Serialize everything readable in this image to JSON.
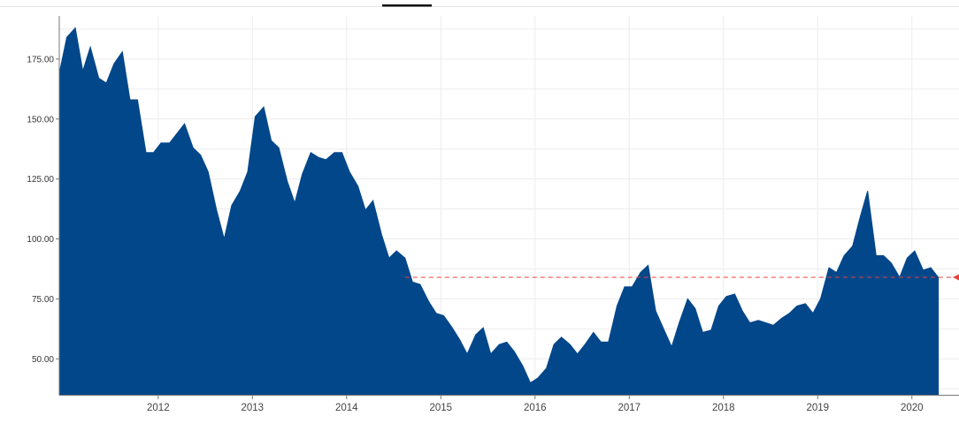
{
  "colors": {
    "area": "#02478a",
    "reference_line": "#e8413c",
    "grid": "#ececec",
    "axis": "#777777",
    "tab_indicator": "#111111"
  },
  "chart_data": {
    "type": "area",
    "title": "",
    "xlabel": "",
    "ylabel": "",
    "xlim": [
      2010.95,
      2020.5
    ],
    "ylim": [
      35,
      193
    ],
    "grid": true,
    "x_ticks": [
      {
        "x": 2012,
        "label": "2012"
      },
      {
        "x": 2013,
        "label": "2013"
      },
      {
        "x": 2014,
        "label": "2014"
      },
      {
        "x": 2015,
        "label": "2015"
      },
      {
        "x": 2016,
        "label": "2016"
      },
      {
        "x": 2017,
        "label": "2017"
      },
      {
        "x": 2018,
        "label": "2018"
      },
      {
        "x": 2019,
        "label": "2019"
      },
      {
        "x": 2020,
        "label": "2020"
      }
    ],
    "y_ticks": [
      {
        "y": 50,
        "label": "50.00"
      },
      {
        "y": 75,
        "label": "75.00"
      },
      {
        "y": 100,
        "label": "100.00"
      },
      {
        "y": 125,
        "label": "125.00"
      },
      {
        "y": 150,
        "label": "150.00"
      },
      {
        "y": 175,
        "label": "175.00"
      }
    ],
    "reference_value": 84,
    "reference_start_x": 2014.62,
    "series": [
      {
        "x": [
          2010.95,
          2011.03,
          2011.12,
          2011.2,
          2011.28,
          2011.37,
          2011.45,
          2011.53,
          2011.62,
          2011.7,
          2011.78,
          2011.87,
          2011.95,
          2012.03,
          2012.12,
          2012.2,
          2012.28,
          2012.37,
          2012.45,
          2012.53,
          2012.62,
          2012.7,
          2012.78,
          2012.87,
          2012.95,
          2013.03,
          2013.12,
          2013.2,
          2013.28,
          2013.37,
          2013.45,
          2013.53,
          2013.62,
          2013.7,
          2013.78,
          2013.87,
          2013.95,
          2014.03,
          2014.12,
          2014.2,
          2014.28,
          2014.37,
          2014.45,
          2014.53,
          2014.62,
          2014.7,
          2014.78,
          2014.87,
          2014.95,
          2015.03,
          2015.12,
          2015.2,
          2015.28,
          2015.37,
          2015.45,
          2015.53,
          2015.62,
          2015.7,
          2015.78,
          2015.87,
          2015.95,
          2016.03,
          2016.12,
          2016.2,
          2016.28,
          2016.37,
          2016.45,
          2016.53,
          2016.62,
          2016.7,
          2016.78,
          2016.87,
          2016.95,
          2017.03,
          2017.12,
          2017.2,
          2017.28,
          2017.37,
          2017.45,
          2017.53,
          2017.62,
          2017.7,
          2017.78,
          2017.87,
          2017.95,
          2018.03,
          2018.12,
          2018.2,
          2018.28,
          2018.37,
          2018.45,
          2018.53,
          2018.62,
          2018.7,
          2018.78,
          2018.87,
          2018.95,
          2019.03,
          2019.12,
          2019.2,
          2019.28,
          2019.37,
          2019.45,
          2019.53,
          2019.62,
          2019.7,
          2019.78,
          2019.87,
          2019.95,
          2020.03,
          2020.12,
          2020.2,
          2020.28
        ],
        "values": [
          169,
          184,
          188,
          170,
          180,
          167,
          165,
          173,
          178,
          158,
          158,
          136,
          136,
          140,
          140,
          144,
          148,
          138,
          135,
          128,
          112,
          100,
          114,
          120,
          128,
          151,
          155,
          141,
          138,
          124,
          115,
          127,
          136,
          134,
          133,
          136,
          136,
          128,
          122,
          112,
          116,
          102,
          92,
          95,
          92,
          82,
          81,
          74,
          69,
          68,
          63,
          58,
          52,
          60,
          63,
          52,
          56,
          57,
          53,
          47,
          40,
          42,
          46,
          56,
          59,
          56,
          52,
          56,
          61,
          57,
          57,
          72,
          80,
          80,
          86,
          89,
          70,
          62,
          55,
          65,
          75,
          71,
          61,
          62,
          72,
          76,
          77,
          70,
          65,
          66,
          65,
          64,
          67,
          69,
          72,
          73,
          69,
          75,
          88,
          86,
          93,
          97,
          109,
          120,
          93,
          93,
          90,
          84,
          92,
          95,
          87,
          88,
          84
        ]
      }
    ]
  }
}
